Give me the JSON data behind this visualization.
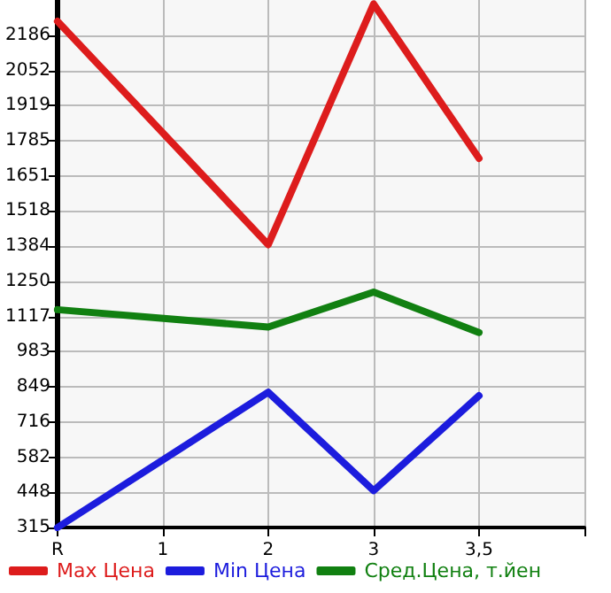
{
  "chart_data": {
    "type": "line",
    "categories": [
      "R",
      "1",
      "2",
      "3",
      "3,5",
      null
    ],
    "series": [
      {
        "name": "Max Цена",
        "color": "#dd1c1c",
        "values": [
          2239,
          null,
          1390,
          2305,
          1718,
          null
        ]
      },
      {
        "name": "Min Цена",
        "color": "#1c1cdd",
        "values": [
          315,
          null,
          829,
          455,
          816,
          null
        ]
      },
      {
        "name": "Сред.Цена, т.йен",
        "color": "#118011",
        "values": [
          1143,
          null,
          1077,
          1210,
          1056,
          null
        ]
      }
    ],
    "ylim": [
      315,
      2320
    ],
    "yticks": [
      315,
      448,
      582,
      716,
      849,
      983,
      1117,
      1250,
      1384,
      1518,
      1651,
      1785,
      1919,
      2052,
      2186
    ],
    "grid": true,
    "legend": "bottom",
    "marker": "none",
    "line_style": "solid"
  }
}
